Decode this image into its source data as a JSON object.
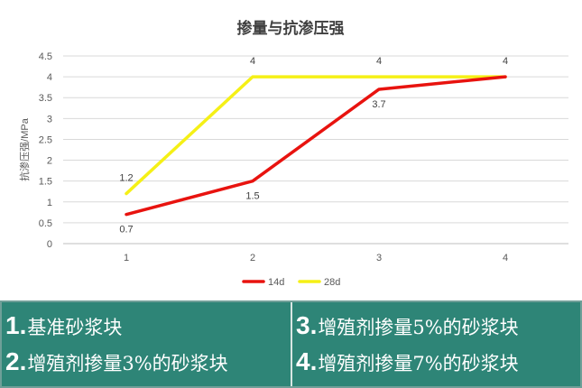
{
  "chart_data": {
    "type": "line",
    "title": "掺量与抗渗压强",
    "ylabel": "抗渗压强/MPa",
    "xlabel": "",
    "categories": [
      "1",
      "2",
      "3",
      "4"
    ],
    "ylim": [
      0,
      4.5
    ],
    "yticks": [
      "0",
      "0.5",
      "1",
      "1.5",
      "2",
      "2.5",
      "3",
      "3.5",
      "4",
      "4.5"
    ],
    "grid": true,
    "legend_position": "bottom",
    "series": [
      {
        "name": "14d",
        "values": [
          0.7,
          1.5,
          3.7,
          4
        ],
        "labels": [
          "0.7",
          "1.5",
          "3.7",
          "4"
        ],
        "color": "#e8130f"
      },
      {
        "name": "28d",
        "values": [
          1.2,
          4,
          4,
          4
        ],
        "labels": [
          "1.2",
          "4",
          "4",
          "4"
        ],
        "color": "#f5f016"
      }
    ]
  },
  "legend_panel": {
    "left_items": [
      {
        "num": "1.",
        "text": "基准砂浆块"
      },
      {
        "num": "2.",
        "text": "增殖剂掺量3%的砂浆块"
      }
    ],
    "right_items": [
      {
        "num": "3.",
        "text": "增殖剂掺量5%的砂浆块"
      },
      {
        "num": "4.",
        "text": "增殖剂掺量7%的砂浆块"
      }
    ]
  }
}
